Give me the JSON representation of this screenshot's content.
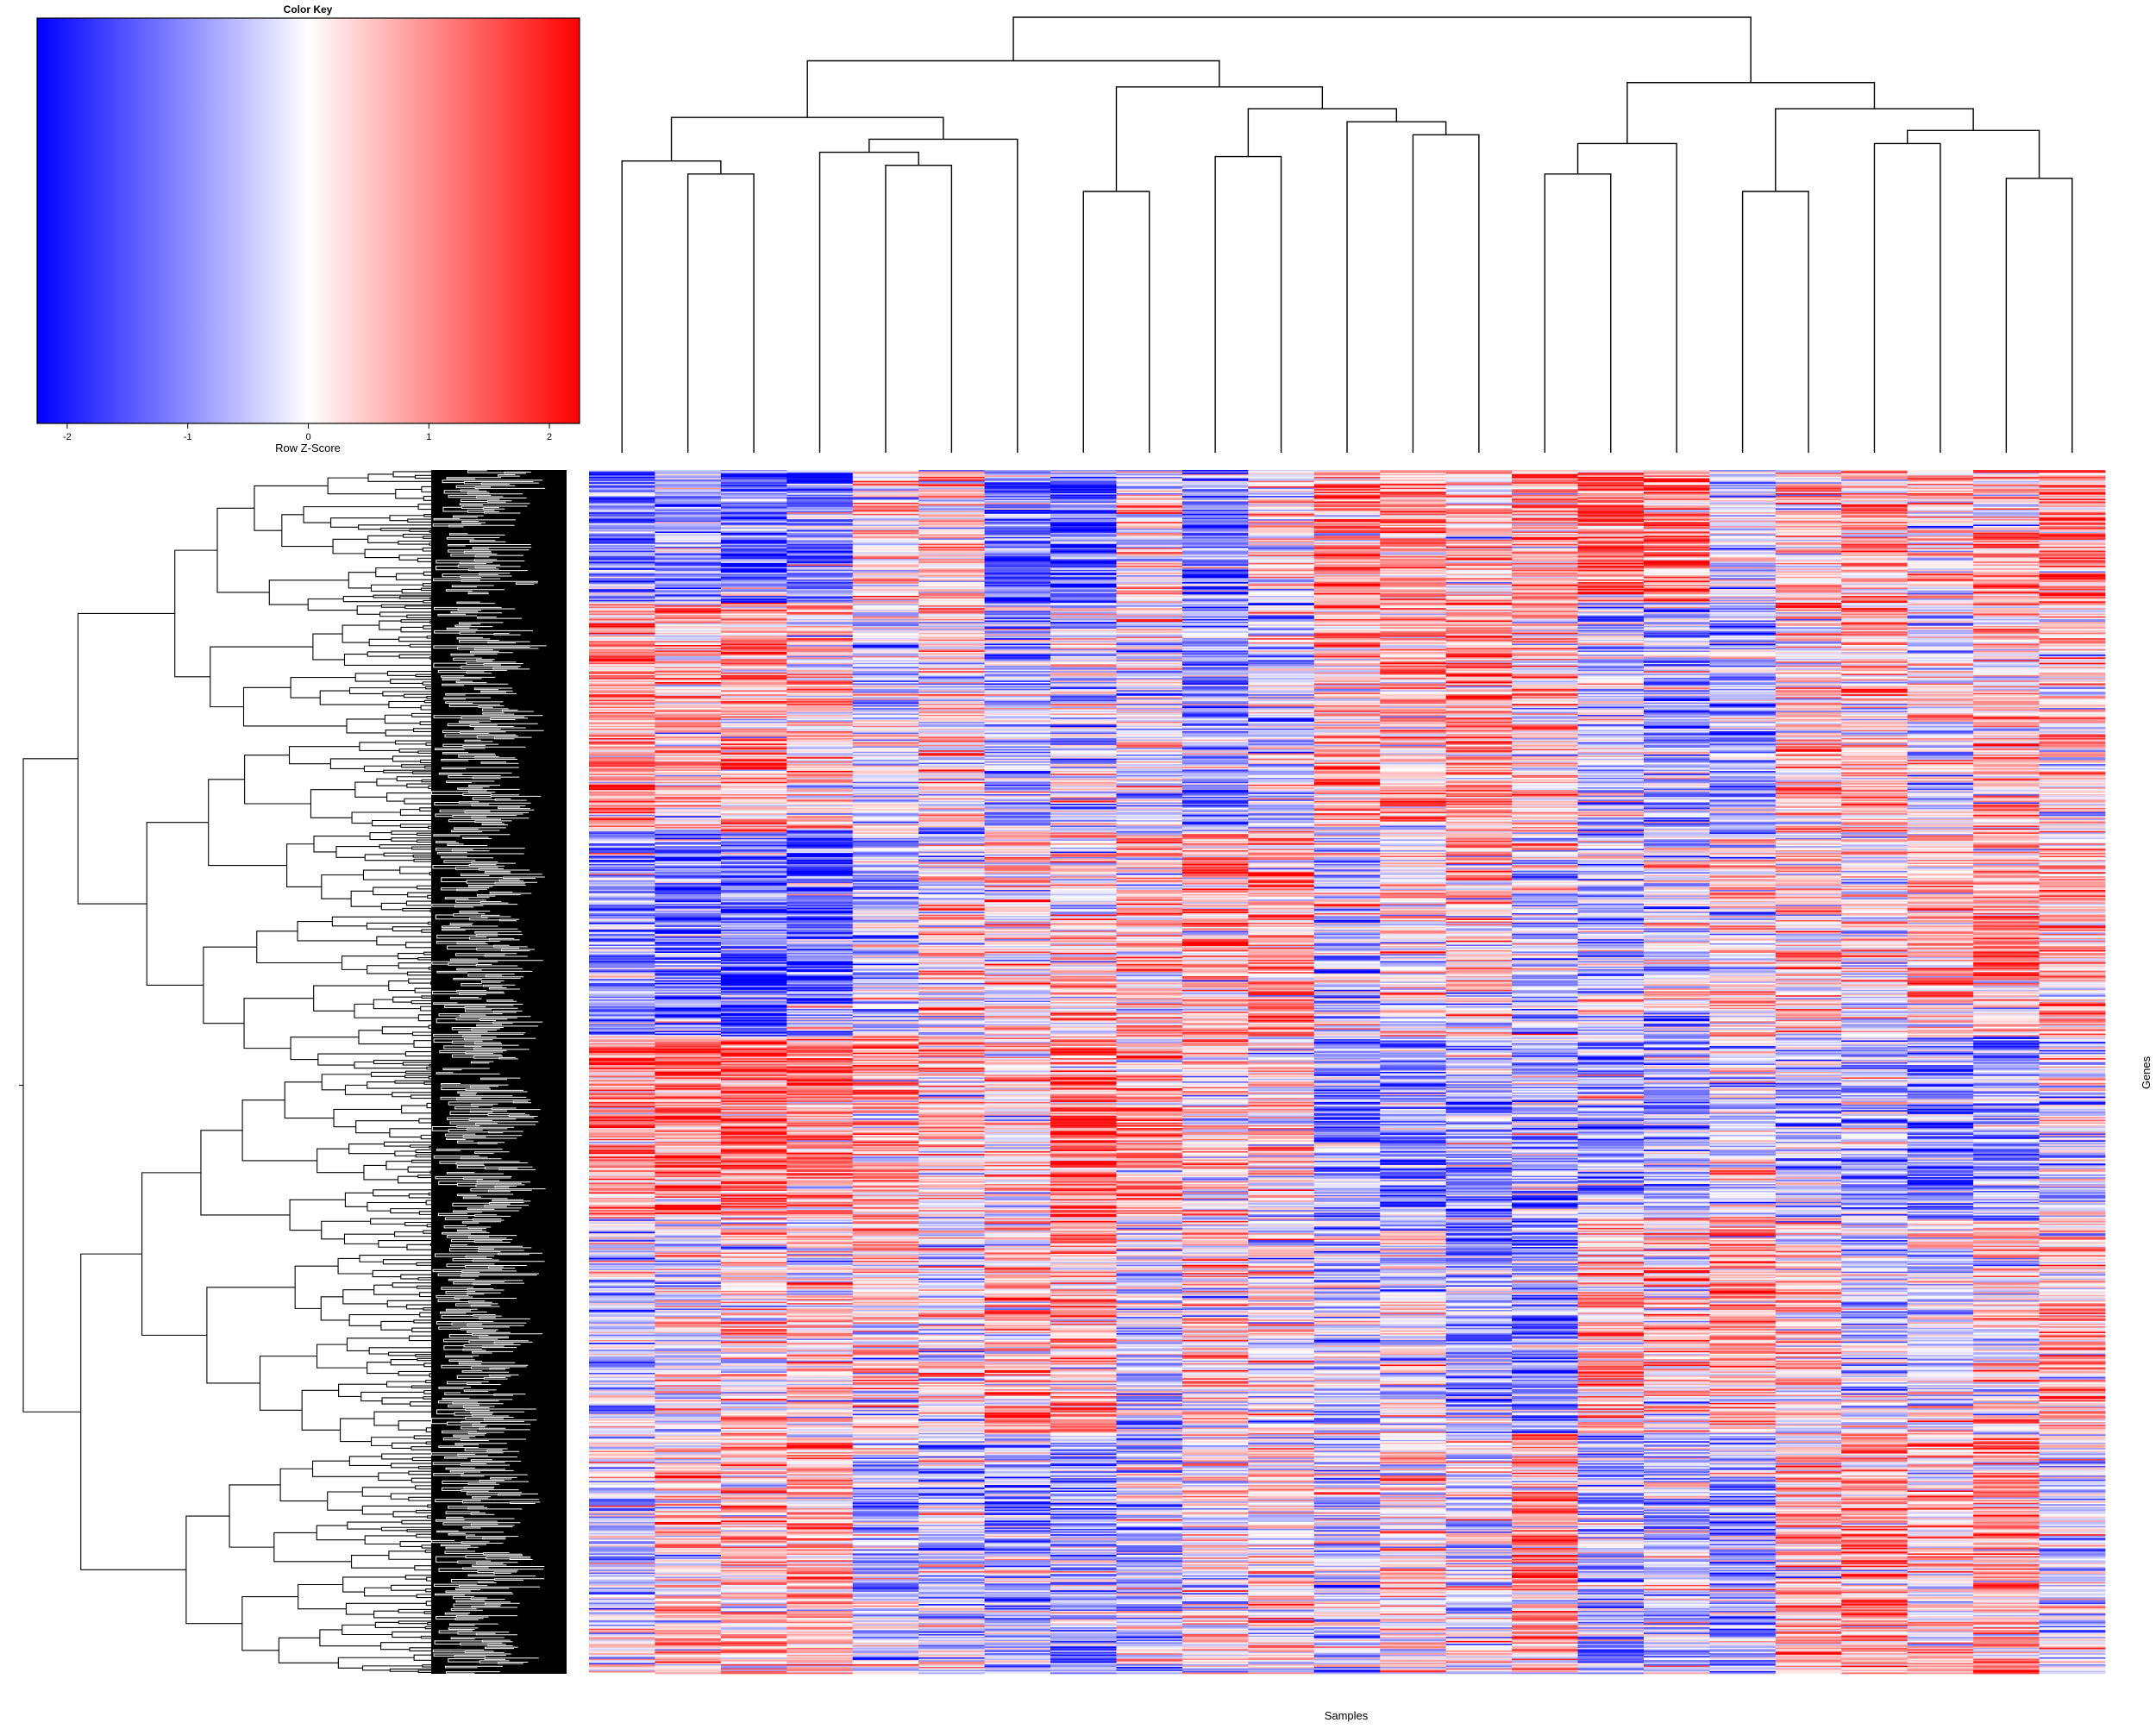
{
  "chart_data": {
    "type": "heatmap",
    "title": "",
    "xlabel": "Samples",
    "ylabel": "Genes",
    "n_columns": 23,
    "n_rows_approx": 880,
    "row_dendrogram": true,
    "column_dendrogram": true,
    "color_scale": {
      "low": "#0000ff",
      "mid": "#ffffff",
      "high": "#ff0000",
      "range": [
        -2.25,
        2.25
      ]
    },
    "color_key": {
      "title": "Color Key",
      "xlabel": "Row Z-Score",
      "ticks": [
        -2,
        -1,
        0,
        1,
        2
      ],
      "tick_labels": [
        "-2",
        "-1",
        "0",
        "1",
        "2"
      ]
    },
    "column_tree": [
      [
        [
          [
            0,
            [
              1,
              2
            ]
          ],
          [
            [
              3,
              [
                4,
                5
              ]
            ],
            6
          ]
        ],
        [
          [
            7,
            8
          ],
          [
            [
              9,
              10
            ],
            [
              11,
              [
                12,
                13
              ]
            ]
          ]
        ]
      ],
      [
        [
          [
            14,
            15
          ],
          16
        ],
        [
          [
            17,
            18
          ],
          [
            [
              19,
              20
            ],
            [
              21,
              22
            ]
          ]
        ]
      ]
    ],
    "column_leaf_heights": [
      0.64,
      0.58,
      0.61,
      0.56,
      0.63,
      0.6,
      0.55,
      0.56,
      0.57,
      0.65,
      0.62,
      0.59,
      0.7,
      0.59,
      0.6,
      0.61,
      0.66,
      0.57,
      0.55,
      0.63,
      0.68,
      0.53,
      0.6
    ],
    "column_merge_heights": {
      "root": 1.0,
      "left_main": 0.9,
      "right_main": 0.85,
      "left_a": 0.82,
      "left_b": 0.82
    },
    "column_block_bias": [
      [
        -0.9,
        -0.5,
        -0.9,
        -1.0,
        0.2,
        0.4,
        -1.0,
        -1.1,
        0.1,
        -0.9,
        0.1,
        0.7,
        0.8,
        0.3,
        0.7,
        1.0,
        0.9,
        -0.2,
        0.4,
        0.5,
        0.1,
        0.4,
        0.6
      ],
      [
        0.7,
        0.4,
        0.5,
        0.3,
        -0.3,
        0.2,
        -0.5,
        -0.2,
        -0.1,
        -0.6,
        -0.2,
        0.5,
        0.4,
        0.6,
        0.3,
        -0.3,
        -0.5,
        -0.6,
        0.2,
        0.3,
        -0.1,
        0.3,
        0.2
      ],
      [
        -0.6,
        -0.9,
        -1.0,
        -0.9,
        -0.4,
        0.0,
        0.3,
        0.3,
        0.4,
        0.5,
        0.6,
        -0.3,
        0.1,
        0.2,
        -0.5,
        -0.3,
        -0.2,
        0.1,
        0.2,
        0.0,
        0.4,
        0.6,
        0.5
      ],
      [
        0.8,
        0.9,
        0.9,
        0.7,
        0.5,
        0.3,
        0.1,
        0.9,
        0.7,
        0.2,
        0.1,
        -0.7,
        -0.8,
        -0.6,
        -0.6,
        -0.5,
        -0.6,
        -0.2,
        -0.4,
        -0.6,
        -0.7,
        -0.6,
        -0.3
      ],
      [
        -0.3,
        0.0,
        0.3,
        0.2,
        0.3,
        0.1,
        0.4,
        0.6,
        -0.2,
        0.1,
        0.0,
        -0.4,
        -0.3,
        -0.6,
        -0.7,
        0.4,
        0.3,
        0.5,
        0.3,
        -0.3,
        -0.2,
        0.1,
        0.4
      ],
      [
        -0.2,
        0.3,
        0.4,
        0.5,
        -0.5,
        -0.3,
        -0.6,
        -0.5,
        -0.4,
        0.1,
        0.2,
        -0.2,
        0.2,
        -0.1,
        0.6,
        -0.5,
        -0.4,
        -0.6,
        0.4,
        0.6,
        0.2,
        0.6,
        -0.1
      ]
    ],
    "row_block_breaks": [
      0.11,
      0.3,
      0.47,
      0.62,
      0.8,
      1.0
    ]
  }
}
